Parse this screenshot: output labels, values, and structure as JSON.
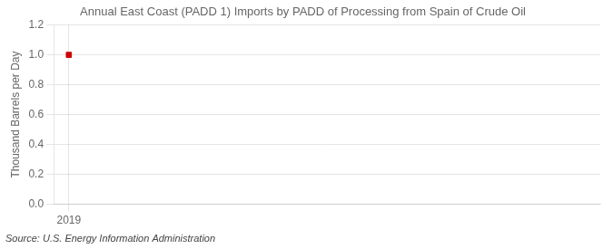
{
  "chart_data": {
    "type": "scatter",
    "title": "Annual East Coast (PADD 1) Imports by PADD of Processing from Spain of Crude Oil",
    "ylabel": "Thousand Barrels per Day",
    "annotations": [
      "Source: U.S. Energy Information Administration"
    ],
    "x": [
      2019
    ],
    "values": [
      1.0
    ],
    "color": "#cc0000",
    "marker": "square",
    "xlim": [
      2018.8,
      2026.0
    ],
    "xticks": [
      2019
    ],
    "ylim": [
      0.0,
      1.2
    ],
    "yticks": [
      {
        "value": 0.0,
        "label": "0.0"
      },
      0.2,
      0.4,
      0.6,
      0.8,
      {
        "value": 1.0,
        "label": "1.0"
      },
      1.2
    ],
    "grid": true
  }
}
